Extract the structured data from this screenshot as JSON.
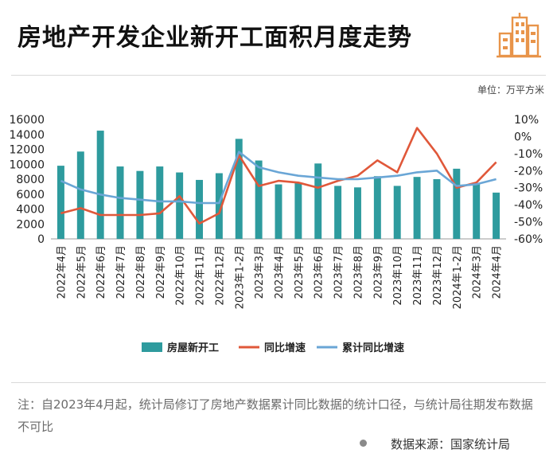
{
  "header": {
    "title": "房地产开发企业新开工面积月度走势"
  },
  "unit_label": "单位：万平方米",
  "note": "注：自2023年4月起，统计局修订了房地产数据累计同比数据的统计口径，与统计局往期发布数据不可比",
  "source": "数据来源：国家统计局",
  "colors": {
    "bar": "#2e9b9e",
    "yoy": "#e0583a",
    "cum": "#6aa6d6",
    "logo": "#e8944a"
  },
  "chart_data": {
    "type": "bar+line",
    "categories": [
      "2022年4月",
      "2022年5月",
      "2022年6月",
      "2022年7月",
      "2022年8月",
      "2022年9月",
      "2022年10月",
      "2022年11月",
      "2022年12月",
      "2023年1-2月",
      "2023年3月",
      "2023年4月",
      "2023年5月",
      "2023年6月",
      "2023年7月",
      "2023年8月",
      "2023年9月",
      "2023年10月",
      "2023年11月",
      "2023年12月",
      "2024年1-2月",
      "2024年3月",
      "2024年4月"
    ],
    "series": [
      {
        "name": "房屋新开工",
        "axis": "left",
        "kind": "bar",
        "values": [
          9800,
          11700,
          14500,
          9700,
          9100,
          9700,
          8900,
          7900,
          8800,
          13400,
          10500,
          7300,
          7500,
          10100,
          7100,
          6900,
          8400,
          7100,
          8300,
          8000,
          9400,
          7400,
          6200
        ]
      },
      {
        "name": "同比增速",
        "axis": "right",
        "kind": "line",
        "values": [
          -45,
          -42,
          -46,
          -46,
          -46,
          -45,
          -35,
          -51,
          -45,
          -11,
          -29,
          -26,
          -27,
          -30,
          -26,
          -23,
          -14,
          -21,
          5,
          -10,
          -30,
          -27,
          -15
        ]
      },
      {
        "name": "累计同比增速",
        "axis": "right",
        "kind": "line",
        "values": [
          -26,
          -31,
          -34,
          -36,
          -37,
          -38,
          -38,
          -39,
          -39,
          -9,
          -18,
          -21,
          -23,
          -24,
          -25,
          -25,
          -24,
          -23,
          -21,
          -20,
          -29,
          -28,
          -25
        ]
      }
    ],
    "ylim_left": [
      0,
      16000
    ],
    "yticks_left": [
      "0",
      "2000",
      "4000",
      "6000",
      "8000",
      "10000",
      "12000",
      "14000",
      "16000"
    ],
    "ylim_right": [
      -60,
      10
    ],
    "yticks_right": [
      "-60%",
      "-50%",
      "-40%",
      "-30%",
      "-20%",
      "-10%",
      "0%",
      "10%"
    ],
    "legend": [
      "房屋新开工",
      "同比增速",
      "累计同比增速"
    ]
  }
}
